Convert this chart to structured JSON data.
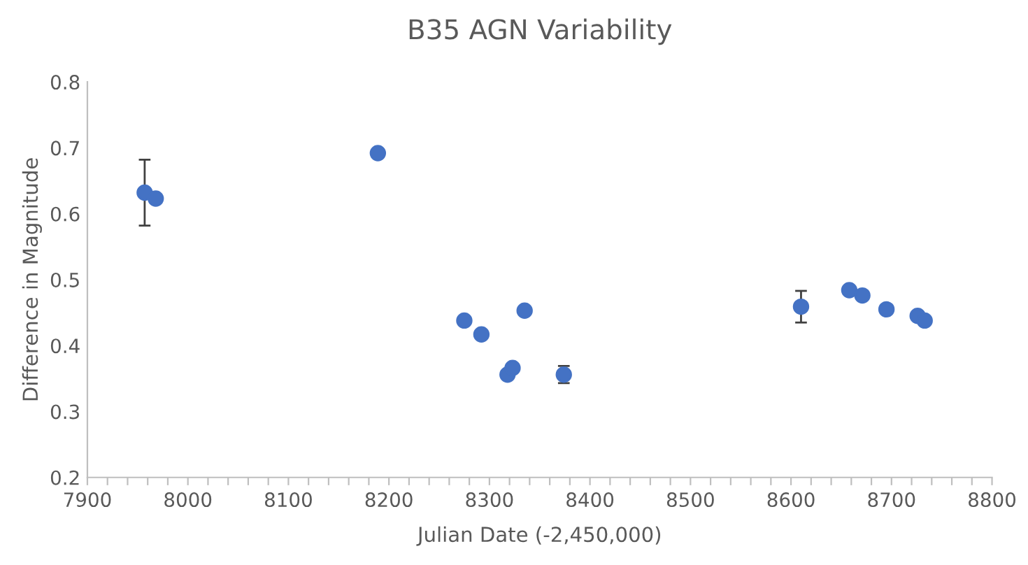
{
  "chart_data": {
    "type": "scatter",
    "title": "B35 AGN Variability",
    "xlabel": "Julian Date (-2,450,000)",
    "ylabel": "Difference in Magnitude",
    "x": [
      7957,
      7968,
      8189,
      8275,
      8292,
      8318,
      8323,
      8335,
      8374,
      8610,
      8658,
      8671,
      8695,
      8726,
      8733
    ],
    "series": [
      {
        "color": "#4472c4",
        "values": [
          0.632,
          0.623,
          0.692,
          0.438,
          0.417,
          0.356,
          0.366,
          0.453,
          0.356,
          0.459,
          0.484,
          0.476,
          0.455,
          0.445,
          0.438
        ],
        "errors": [
          0.05,
          0.007,
          null,
          0.006,
          null,
          0.006,
          null,
          null,
          0.013,
          0.024,
          0.006,
          null,
          null,
          null,
          null
        ]
      }
    ],
    "marker": "circle",
    "grid": false,
    "legend": false,
    "xlim": [
      7900,
      8800
    ],
    "xticks": [
      7900,
      {
        "value": 7920,
        "label": null
      },
      {
        "value": 7940,
        "label": null
      },
      {
        "value": 7960,
        "label": null
      },
      {
        "value": 7980,
        "label": null
      },
      8000,
      {
        "value": 8020,
        "label": null
      },
      {
        "value": 8040,
        "label": null
      },
      {
        "value": 8060,
        "label": null
      },
      {
        "value": 8080,
        "label": null
      },
      8100,
      {
        "value": 8120,
        "label": null
      },
      {
        "value": 8140,
        "label": null
      },
      {
        "value": 8160,
        "label": null
      },
      {
        "value": 8180,
        "label": null
      },
      8200,
      {
        "value": 8220,
        "label": null
      },
      {
        "value": 8240,
        "label": null
      },
      {
        "value": 8260,
        "label": null
      },
      {
        "value": 8280,
        "label": null
      },
      8300,
      {
        "value": 8320,
        "label": null
      },
      {
        "value": 8340,
        "label": null
      },
      {
        "value": 8360,
        "label": null
      },
      {
        "value": 8380,
        "label": null
      },
      8400,
      {
        "value": 8420,
        "label": null
      },
      {
        "value": 8440,
        "label": null
      },
      {
        "value": 8460,
        "label": null
      },
      {
        "value": 8480,
        "label": null
      },
      8500,
      {
        "value": 8520,
        "label": null
      },
      {
        "value": 8540,
        "label": null
      },
      {
        "value": 8560,
        "label": null
      },
      {
        "value": 8580,
        "label": null
      },
      8600,
      {
        "value": 8620,
        "label": null
      },
      {
        "value": 8640,
        "label": null
      },
      {
        "value": 8660,
        "label": null
      },
      {
        "value": 8680,
        "label": null
      },
      8700,
      {
        "value": 8720,
        "label": null
      },
      {
        "value": 8740,
        "label": null
      },
      {
        "value": 8760,
        "label": null
      },
      {
        "value": 8780,
        "label": null
      },
      8800
    ],
    "ylim": [
      0.2,
      0.8
    ],
    "yticks": [
      0.2,
      0.3,
      0.4,
      0.5,
      0.6,
      0.7,
      0.8
    ]
  }
}
